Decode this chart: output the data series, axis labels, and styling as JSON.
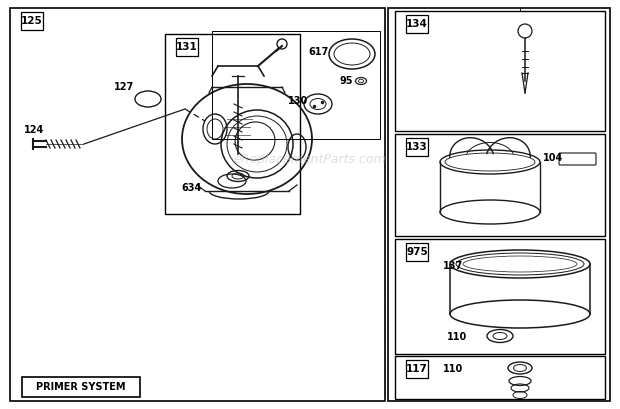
{
  "bg_color": "#ffffff",
  "line_color": "#1a1a1a",
  "watermark": "eReplacementParts.com",
  "primer_label": "PRIMER SYSTEM",
  "figsize": [
    6.2,
    4.09
  ],
  "dpi": 100
}
